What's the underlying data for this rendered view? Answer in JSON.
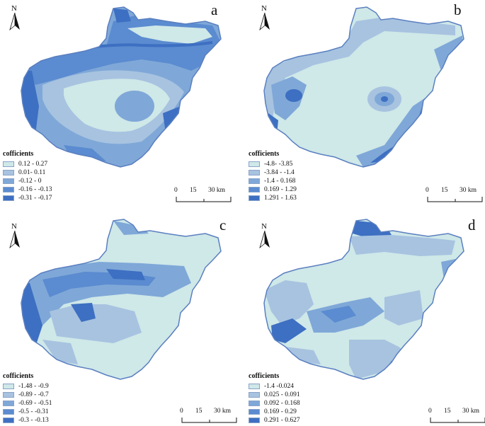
{
  "colors": {
    "c1": "#cfe8e8",
    "c2": "#a7c3e0",
    "c3": "#7fa8d8",
    "c4": "#5b8bd0",
    "c5": "#3d6fc2",
    "boundary": "#5a7fc0"
  },
  "north_label": "N",
  "scale": {
    "zero": "0",
    "mid": "15",
    "end": "30 km"
  },
  "panels": [
    {
      "letter": "a",
      "legend_title": "cofficients",
      "legend": [
        "0.12 - 0.27",
        "0.01- 0.11",
        "-0.12 - 0",
        "-0.16 - -0.13",
        "-0.31 - -0.17"
      ]
    },
    {
      "letter": "b",
      "legend_title": "cofficients",
      "legend": [
        "-4.8- -3.85",
        "-3.84 - -1.4",
        "-1.4 - 0.168",
        "0.169 - 1.29",
        "1.291 - 1.63"
      ]
    },
    {
      "letter": "c",
      "legend_title": "cofficients",
      "legend": [
        "-1.48 - -0.9",
        "-0.89 - -0.7",
        "-0.69 - -0.51",
        "-0.5 - -0.31",
        "-0.3 - -0.13"
      ]
    },
    {
      "letter": "d",
      "legend_title": "cofficients",
      "legend": [
        "-1.4 -0.024",
        "0.025 - 0.091",
        "0.092 - 0.168",
        "0.169 - 0.29",
        "0.291 - 0.627"
      ]
    }
  ]
}
